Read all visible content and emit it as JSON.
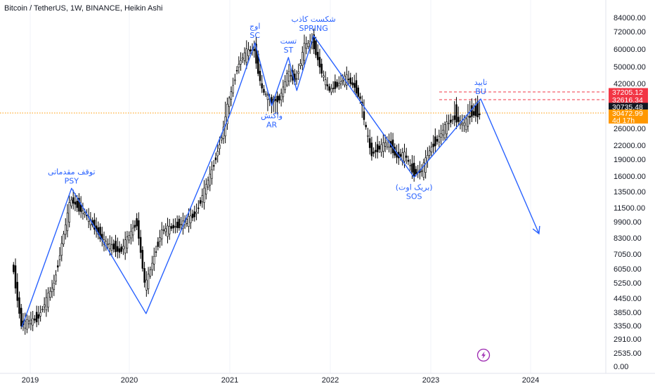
{
  "header": {
    "title": "Bitcoin / TetherUS, 1W, BINANCE, Heikin Ashi"
  },
  "colors": {
    "annotation": "#2962ff",
    "candle": "#000000",
    "red_line": "#f23645",
    "orange_line": "#ff9800",
    "dark_badge": "#131722",
    "lightning_icon": "#9c27b0"
  },
  "lightning_icon": "lightning-icon",
  "chart_data": {
    "type": "candlestick",
    "chart_style": "Heikin Ashi",
    "interval": "1W",
    "x_ticks": [
      "2019",
      "2020",
      "2021",
      "2022",
      "2023",
      "2024"
    ],
    "y_scale": "log",
    "y_ticks": [
      "84000.00",
      "72000.00",
      "60000.00",
      "50000.00",
      "42000.00",
      "26000.00",
      "22000.00",
      "19000.00",
      "16000.00",
      "13500.00",
      "11500.00",
      "9900.00",
      "8300.00",
      "7050.00",
      "6050.00",
      "5250.00",
      "4450.00",
      "3850.00",
      "3350.00",
      "2910.00",
      "2535.00",
      "0.00"
    ],
    "price_series": [
      [
        "2018-11",
        6300
      ],
      [
        "2018-12",
        3400
      ],
      [
        "2019-02",
        3600
      ],
      [
        "2019-04",
        5200
      ],
      [
        "2019-06",
        12500
      ],
      [
        "2019-08",
        10500
      ],
      [
        "2019-10",
        8000
      ],
      [
        "2019-12",
        7200
      ],
      [
        "2020-02",
        9800
      ],
      [
        "2020-03",
        5000
      ],
      [
        "2020-05",
        9000
      ],
      [
        "2020-07",
        9500
      ],
      [
        "2020-09",
        10700
      ],
      [
        "2020-11",
        17000
      ],
      [
        "2020-12",
        23000
      ],
      [
        "2021-01",
        33000
      ],
      [
        "2021-02",
        50000
      ],
      [
        "2021-03",
        58000
      ],
      [
        "2021-04",
        60000
      ],
      [
        "2021-05",
        38000
      ],
      [
        "2021-06",
        32000
      ],
      [
        "2021-07",
        33000
      ],
      [
        "2021-08",
        47000
      ],
      [
        "2021-09",
        43000
      ],
      [
        "2021-10",
        62000
      ],
      [
        "2021-11",
        65000
      ],
      [
        "2021-12",
        48000
      ],
      [
        "2022-01",
        38000
      ],
      [
        "2022-03",
        45000
      ],
      [
        "2022-04",
        40000
      ],
      [
        "2022-05",
        30000
      ],
      [
        "2022-06",
        20000
      ],
      [
        "2022-08",
        23000
      ],
      [
        "2022-09",
        19500
      ],
      [
        "2022-10",
        20000
      ],
      [
        "2022-11",
        16500
      ],
      [
        "2022-12",
        16800
      ],
      [
        "2023-01",
        21000
      ],
      [
        "2023-02",
        23500
      ],
      [
        "2023-03",
        27000
      ],
      [
        "2023-04",
        29000
      ],
      [
        "2023-05",
        27000
      ],
      [
        "2023-06",
        30000
      ],
      [
        "2023-07",
        30000
      ]
    ],
    "price_lines": [
      {
        "value": 37205.12,
        "label": "37205.12",
        "color": "#f23645",
        "style": "dashed"
      },
      {
        "value": 32616.34,
        "label": "32616.34",
        "color": "#f23645",
        "style": "dashed"
      },
      {
        "value": 30472.99,
        "label": "30472.99",
        "color": "#ff9800",
        "style": "dotted"
      }
    ],
    "price_labels": [
      {
        "label": "30735.48",
        "color": "#131722"
      },
      {
        "label": "4d 17h",
        "color": "#ff9800"
      }
    ],
    "wyckoff_path": [
      [
        "2018-12",
        3300
      ],
      [
        "2019-06",
        14000
      ],
      [
        "2020-03",
        3800
      ],
      [
        "2021-01",
        30000
      ],
      [
        "2021-04",
        64000
      ],
      [
        "2021-06",
        31000
      ],
      [
        "2021-08",
        55000
      ],
      [
        "2021-09",
        38000
      ],
      [
        "2021-11",
        69000
      ],
      [
        "2022-11",
        15800
      ],
      [
        "2023-07",
        33000
      ],
      [
        "2024-02",
        8700
      ]
    ],
    "annotations": [
      {
        "label": "PSY",
        "label_fa": "توقف مقدماتی",
        "x": "2019-06",
        "y": 14000,
        "pos": "above"
      },
      {
        "label": "SC",
        "label_fa": "اوج",
        "x": "2021-04",
        "y": 64000,
        "pos": "above"
      },
      {
        "label": "AR",
        "label_fa": "واکنش",
        "x": "2021-06",
        "y": 31000,
        "pos": "below"
      },
      {
        "label": "ST",
        "label_fa": "تست",
        "x": "2021-08",
        "y": 55000,
        "pos": "above"
      },
      {
        "label": "SPRING",
        "label_fa": "شکست کاذب",
        "x": "2021-11",
        "y": 69000,
        "pos": "above"
      },
      {
        "label": "SOS",
        "label_fa": "(بریک اوت)",
        "x": "2022-11",
        "y": 15800,
        "pos": "below"
      },
      {
        "label": "BU",
        "label_fa": "تایید",
        "x": "2023-07",
        "y": 33000,
        "pos": "above"
      }
    ]
  }
}
